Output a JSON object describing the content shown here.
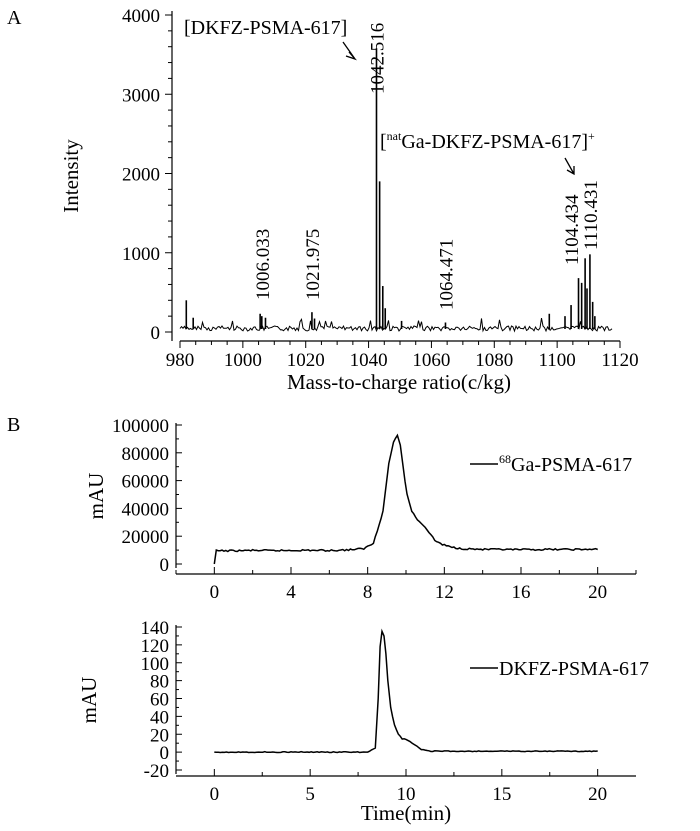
{
  "panels": {
    "a_label": "A",
    "b_label": "B"
  },
  "chart_data": [
    {
      "type": "line",
      "id": "ms",
      "xlabel": "Mass-to-charge ratio(c/kg)",
      "ylabel": "Intensity",
      "xlim": [
        980,
        1120
      ],
      "ylim": [
        0,
        4000
      ],
      "xticks": [
        980,
        1000,
        1020,
        1040,
        1060,
        1080,
        1100,
        1120
      ],
      "yticks": [
        0,
        1000,
        2000,
        3000,
        4000
      ],
      "peaks": [
        {
          "x": 982.0,
          "y": 400
        },
        {
          "x": 984.2,
          "y": 180
        },
        {
          "x": 1005.5,
          "y": 230
        },
        {
          "x": 1006.03,
          "y": 200
        },
        {
          "x": 1007.2,
          "y": 180
        },
        {
          "x": 1021.98,
          "y": 250
        },
        {
          "x": 1022.8,
          "y": 170
        },
        {
          "x": 1042.52,
          "y": 3580
        },
        {
          "x": 1043.52,
          "y": 1900
        },
        {
          "x": 1044.52,
          "y": 580
        },
        {
          "x": 1045.3,
          "y": 300
        },
        {
          "x": 1050.5,
          "y": 140
        },
        {
          "x": 1064.47,
          "y": 120
        },
        {
          "x": 1097.5,
          "y": 230
        },
        {
          "x": 1102.5,
          "y": 200
        },
        {
          "x": 1104.43,
          "y": 340
        },
        {
          "x": 1106.8,
          "y": 680
        },
        {
          "x": 1107.8,
          "y": 620
        },
        {
          "x": 1108.9,
          "y": 930
        },
        {
          "x": 1109.5,
          "y": 550
        },
        {
          "x": 1110.43,
          "y": 980
        },
        {
          "x": 1111.3,
          "y": 380
        },
        {
          "x": 1112.0,
          "y": 200
        }
      ],
      "peak_labels": [
        {
          "x": 1006.033,
          "text": "1006.033"
        },
        {
          "x": 1021.975,
          "text": "1021.975"
        },
        {
          "x": 1042.516,
          "text": "1042.516"
        },
        {
          "x": 1064.471,
          "text": "1064.471"
        },
        {
          "x": 1104.434,
          "text": "1104.434"
        },
        {
          "x": 1110.431,
          "text": "1110.431"
        }
      ],
      "annotations": [
        {
          "text": "[DKFZ-PSMA-617]"
        },
        {
          "pre": "[",
          "sup": "nat",
          "main": "Ga-DKFZ-PSMA-617]",
          "tail": "+"
        }
      ]
    },
    {
      "type": "line",
      "id": "hplc_ga",
      "ylabel": "mAU",
      "xlim": [
        -2,
        22
      ],
      "ylim": [
        0,
        100000
      ],
      "xticks": [
        0,
        4,
        8,
        12,
        16,
        20
      ],
      "yticks": [
        0,
        20000,
        40000,
        60000,
        80000,
        100000
      ],
      "series": [
        {
          "legend_sup": "68",
          "legend_main": "Ga-PSMA-617",
          "x": [
            0,
            0.1,
            1,
            2,
            3,
            4,
            5,
            6,
            7,
            7.8,
            8.3,
            8.8,
            9.1,
            9.35,
            9.55,
            9.7,
            9.85,
            10.05,
            10.3,
            10.6,
            10.9,
            11.2,
            11.5,
            11.9,
            12.4,
            13,
            14,
            16,
            18,
            20
          ],
          "y": [
            0,
            9500,
            9500,
            9800,
            9600,
            9800,
            9900,
            9700,
            10200,
            11000,
            15000,
            38000,
            72000,
            88000,
            92000,
            86000,
            70000,
            50000,
            38000,
            32000,
            28000,
            23000,
            17000,
            14000,
            12000,
            11000,
            10500,
            10300,
            10500,
            10500
          ]
        }
      ]
    },
    {
      "type": "line",
      "id": "hplc_std",
      "xlabel": "Time(min)",
      "ylabel": "mAU",
      "xlim": [
        -2,
        22
      ],
      "ylim": [
        -20,
        140
      ],
      "xticks": [
        0,
        5,
        10,
        15,
        20
      ],
      "yticks": [
        -20,
        0,
        20,
        40,
        60,
        80,
        100,
        120,
        140
      ],
      "series": [
        {
          "name": "DKFZ-PSMA-617",
          "x": [
            0,
            2,
            4,
            6,
            8,
            8.4,
            8.55,
            8.65,
            8.75,
            8.85,
            8.95,
            9.05,
            9.2,
            9.4,
            9.6,
            9.8,
            10.0,
            10.2,
            10.45,
            10.8,
            11.3,
            12,
            14,
            16,
            18,
            20
          ],
          "y": [
            0,
            0,
            0,
            0,
            0,
            5,
            60,
            118,
            135,
            130,
            110,
            80,
            50,
            30,
            20,
            15,
            14,
            12,
            8,
            3,
            1,
            1,
            1,
            1,
            1,
            1
          ]
        }
      ]
    }
  ]
}
